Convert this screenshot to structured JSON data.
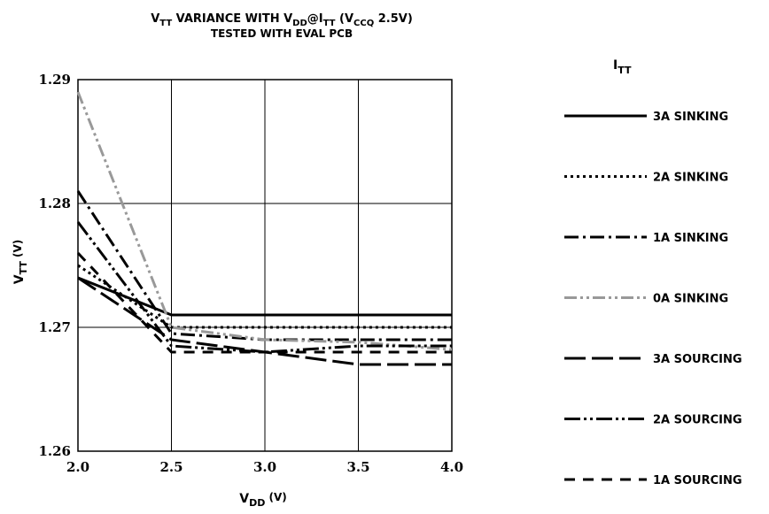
{
  "chart_data": {
    "type": "line",
    "title": {
      "line1": {
        "v": "V",
        "vsub": "TT",
        "mid": " VARIANCE WITH V",
        "ddsub": "DD",
        "at": "@I",
        "ttsub": "TT",
        "open": " (V",
        "ccqsub": "CCQ",
        "tail": " 2.5V)"
      },
      "line2": "TESTED WITH EVAL PCB"
    },
    "xlabel": {
      "main": "V",
      "sub": "DD",
      "unit": " (V)"
    },
    "ylabel": {
      "main": "V",
      "sub": "TT",
      "unit": " (V)"
    },
    "xlim": [
      2.0,
      4.0
    ],
    "ylim": [
      1.26,
      1.29
    ],
    "x_ticks": [
      "2.0",
      "2.5",
      "3.0",
      "3.5",
      "4.0"
    ],
    "y_ticks": [
      "1.26",
      "1.27",
      "1.28",
      "1.29"
    ],
    "grid": true,
    "legend_placement": "right",
    "legend_title": {
      "main": "I",
      "sub": "TT"
    },
    "x": [
      2.0,
      2.5,
      3.0,
      3.5,
      4.0
    ],
    "series": [
      {
        "name": "3A SINKING",
        "values": [
          1.274,
          1.271,
          1.271,
          1.271,
          1.271
        ],
        "color": "#000000",
        "dash": "solid"
      },
      {
        "name": "2A SINKING",
        "values": [
          1.275,
          1.27,
          1.27,
          1.27,
          1.27
        ],
        "color": "#000000",
        "dash": "dot"
      },
      {
        "name": "1A SINKING",
        "values": [
          1.281,
          1.2695,
          1.269,
          1.269,
          1.269
        ],
        "color": "#000000",
        "dash": "dashdot"
      },
      {
        "name": "0A SINKING",
        "values": [
          1.289,
          1.27,
          1.269,
          1.2688,
          1.2682
        ],
        "color": "#999999",
        "dash": "dashdotdot"
      },
      {
        "name": "3A SOURCING",
        "values": [
          1.274,
          1.269,
          1.268,
          1.267,
          1.267
        ],
        "color": "#000000",
        "dash": "longdash"
      },
      {
        "name": "2A SOURCING",
        "values": [
          1.2785,
          1.2685,
          1.268,
          1.2685,
          1.2685
        ],
        "color": "#000000",
        "dash": "dashdotdotlong"
      },
      {
        "name": "1A SOURCING",
        "values": [
          1.276,
          1.268,
          1.268,
          1.268,
          1.268
        ],
        "color": "#000000",
        "dash": "dashgap"
      }
    ]
  }
}
